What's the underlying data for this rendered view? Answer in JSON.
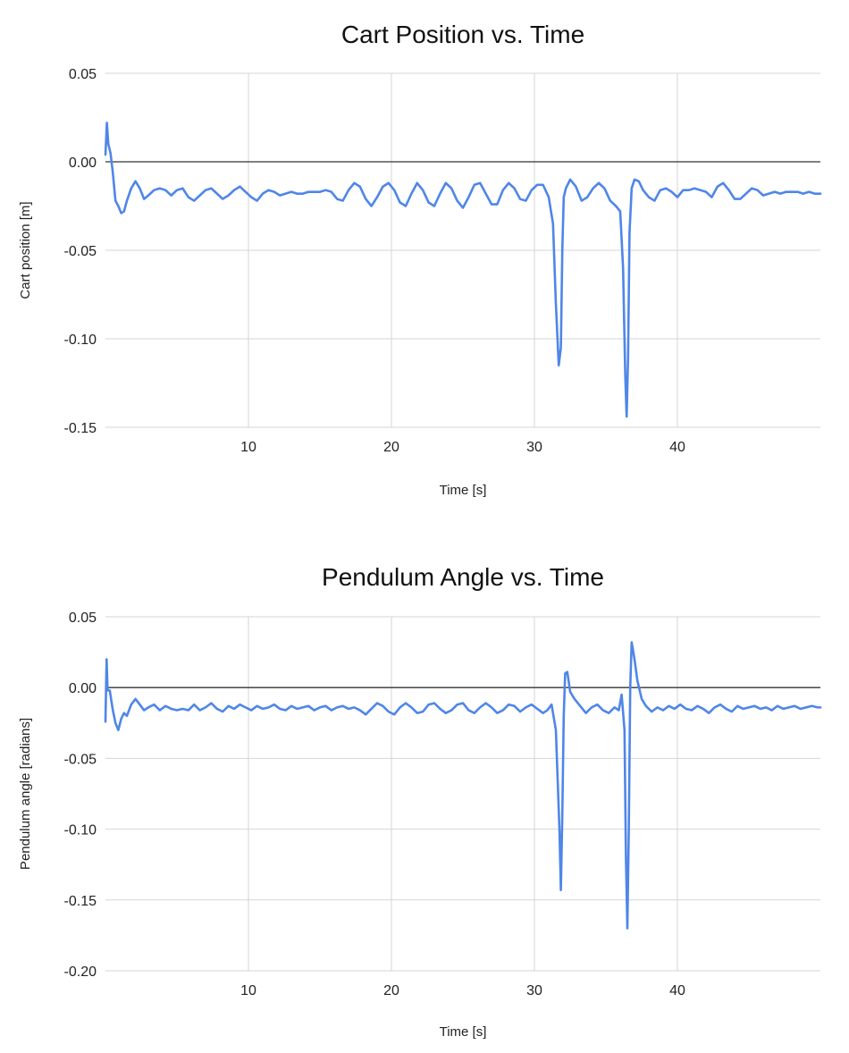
{
  "chart_data": [
    {
      "type": "line",
      "title": "Cart Position vs. Time",
      "xlabel": "Time [s]",
      "ylabel": "Cart position [m]",
      "xlim": [
        0,
        50
      ],
      "ylim": [
        -0.15,
        0.05
      ],
      "xticks": [
        10,
        20,
        30,
        40
      ],
      "xtick_labels": [
        "10",
        "20",
        "30",
        "40"
      ],
      "yticks": [
        0.05,
        0.0,
        -0.05,
        -0.1,
        -0.15
      ],
      "ytick_labels": [
        "0.05",
        "0.00",
        "-0.05",
        "-0.10",
        "-0.15"
      ],
      "grid": true,
      "legend": "none",
      "series": [
        {
          "color": "#4f86e8",
          "x": [
            0.0,
            0.1,
            0.2,
            0.35,
            0.5,
            0.7,
            0.9,
            1.1,
            1.3,
            1.5,
            1.8,
            2.1,
            2.4,
            2.7,
            3.0,
            3.4,
            3.8,
            4.2,
            4.6,
            5.0,
            5.4,
            5.8,
            6.2,
            6.6,
            7.0,
            7.4,
            7.8,
            8.2,
            8.6,
            9.0,
            9.4,
            9.8,
            10.2,
            10.6,
            11.0,
            11.4,
            11.8,
            12.2,
            12.6,
            13.0,
            13.4,
            13.8,
            14.2,
            14.6,
            15.0,
            15.4,
            15.8,
            16.2,
            16.6,
            17.0,
            17.4,
            17.8,
            18.2,
            18.6,
            19.0,
            19.4,
            19.8,
            20.2,
            20.6,
            21.0,
            21.4,
            21.8,
            22.2,
            22.6,
            23.0,
            23.4,
            23.8,
            24.2,
            24.6,
            25.0,
            25.4,
            25.8,
            26.2,
            26.6,
            27.0,
            27.4,
            27.8,
            28.2,
            28.6,
            29.0,
            29.4,
            29.8,
            30.2,
            30.6,
            31.0,
            31.3,
            31.5,
            31.7,
            31.85,
            31.95,
            32.05,
            32.2,
            32.5,
            32.9,
            33.3,
            33.7,
            34.1,
            34.5,
            34.9,
            35.3,
            35.7,
            36.0,
            36.2,
            36.35,
            36.45,
            36.55,
            36.65,
            36.8,
            37.0,
            37.3,
            37.6,
            38.0,
            38.4,
            38.8,
            39.2,
            39.6,
            40.0,
            40.4,
            40.8,
            41.2,
            41.6,
            42.0,
            42.4,
            42.8,
            43.2,
            43.6,
            44.0,
            44.4,
            44.8,
            45.2,
            45.6,
            46.0,
            46.4,
            46.8,
            47.2,
            47.6,
            48.0,
            48.4,
            48.8,
            49.2,
            49.6,
            50.0
          ],
          "y": [
            0.004,
            0.022,
            0.01,
            0.005,
            -0.005,
            -0.022,
            -0.025,
            -0.029,
            -0.028,
            -0.022,
            -0.015,
            -0.011,
            -0.015,
            -0.021,
            -0.019,
            -0.016,
            -0.015,
            -0.016,
            -0.019,
            -0.016,
            -0.015,
            -0.02,
            -0.022,
            -0.019,
            -0.016,
            -0.015,
            -0.018,
            -0.021,
            -0.019,
            -0.016,
            -0.014,
            -0.017,
            -0.02,
            -0.022,
            -0.018,
            -0.016,
            -0.017,
            -0.019,
            -0.018,
            -0.017,
            -0.018,
            -0.018,
            -0.017,
            -0.017,
            -0.017,
            -0.016,
            -0.017,
            -0.021,
            -0.022,
            -0.016,
            -0.012,
            -0.014,
            -0.021,
            -0.025,
            -0.02,
            -0.014,
            -0.012,
            -0.016,
            -0.023,
            -0.025,
            -0.018,
            -0.012,
            -0.016,
            -0.023,
            -0.025,
            -0.018,
            -0.012,
            -0.015,
            -0.022,
            -0.026,
            -0.02,
            -0.013,
            -0.012,
            -0.018,
            -0.024,
            -0.024,
            -0.016,
            -0.012,
            -0.015,
            -0.021,
            -0.022,
            -0.016,
            -0.013,
            -0.013,
            -0.02,
            -0.035,
            -0.08,
            -0.115,
            -0.105,
            -0.05,
            -0.02,
            -0.015,
            -0.01,
            -0.014,
            -0.022,
            -0.02,
            -0.015,
            -0.012,
            -0.015,
            -0.022,
            -0.025,
            -0.028,
            -0.06,
            -0.12,
            -0.144,
            -0.11,
            -0.04,
            -0.015,
            -0.01,
            -0.011,
            -0.016,
            -0.02,
            -0.022,
            -0.016,
            -0.015,
            -0.017,
            -0.02,
            -0.016,
            -0.016,
            -0.015,
            -0.016,
            -0.017,
            -0.02,
            -0.014,
            -0.012,
            -0.016,
            -0.021,
            -0.021,
            -0.018,
            -0.015,
            -0.016,
            -0.019,
            -0.018,
            -0.017,
            -0.018,
            -0.017,
            -0.017,
            -0.017,
            -0.018,
            -0.017,
            -0.018,
            -0.018
          ]
        }
      ]
    },
    {
      "type": "line",
      "title": "Pendulum Angle vs. Time",
      "xlabel": "Time [s]",
      "ylabel": "Pendulum angle [radians]",
      "xlim": [
        0,
        50
      ],
      "ylim": [
        -0.2,
        0.05
      ],
      "xticks": [
        10,
        20,
        30,
        40
      ],
      "xtick_labels": [
        "10",
        "20",
        "30",
        "40"
      ],
      "yticks": [
        0.05,
        0.0,
        -0.05,
        -0.1,
        -0.15,
        -0.2
      ],
      "ytick_labels": [
        "0.05",
        "0.00",
        "-0.05",
        "-0.10",
        "-0.15",
        "-0.20"
      ],
      "grid": true,
      "legend": "none",
      "series": [
        {
          "color": "#4f86e8",
          "x": [
            0.0,
            0.08,
            0.15,
            0.3,
            0.5,
            0.7,
            0.9,
            1.1,
            1.3,
            1.5,
            1.8,
            2.1,
            2.4,
            2.7,
            3.0,
            3.4,
            3.8,
            4.2,
            4.6,
            5.0,
            5.4,
            5.8,
            6.2,
            6.6,
            7.0,
            7.4,
            7.8,
            8.2,
            8.6,
            9.0,
            9.4,
            9.8,
            10.2,
            10.6,
            11.0,
            11.4,
            11.8,
            12.2,
            12.6,
            13.0,
            13.4,
            13.8,
            14.2,
            14.6,
            15.0,
            15.4,
            15.8,
            16.2,
            16.6,
            17.0,
            17.4,
            17.8,
            18.2,
            18.6,
            19.0,
            19.4,
            19.8,
            20.2,
            20.6,
            21.0,
            21.4,
            21.8,
            22.2,
            22.6,
            23.0,
            23.4,
            23.8,
            24.2,
            24.6,
            25.0,
            25.4,
            25.8,
            26.2,
            26.6,
            27.0,
            27.4,
            27.8,
            28.2,
            28.6,
            29.0,
            29.4,
            29.8,
            30.2,
            30.6,
            30.9,
            31.2,
            31.5,
            31.75,
            31.85,
            31.95,
            32.05,
            32.15,
            32.3,
            32.5,
            32.8,
            33.2,
            33.6,
            34.0,
            34.4,
            34.8,
            35.2,
            35.6,
            35.9,
            36.1,
            36.3,
            36.4,
            36.5,
            36.6,
            36.7,
            36.8,
            37.0,
            37.2,
            37.5,
            37.8,
            38.2,
            38.6,
            39.0,
            39.4,
            39.8,
            40.2,
            40.6,
            41.0,
            41.4,
            41.8,
            42.2,
            42.6,
            43.0,
            43.4,
            43.8,
            44.2,
            44.6,
            45.0,
            45.4,
            45.8,
            46.2,
            46.6,
            47.0,
            47.4,
            47.8,
            48.2,
            48.6,
            49.0,
            49.4,
            49.8,
            50.0
          ],
          "y": [
            -0.024,
            0.02,
            -0.002,
            -0.002,
            -0.015,
            -0.025,
            -0.03,
            -0.022,
            -0.018,
            -0.02,
            -0.012,
            -0.008,
            -0.012,
            -0.016,
            -0.014,
            -0.012,
            -0.016,
            -0.013,
            -0.015,
            -0.016,
            -0.015,
            -0.016,
            -0.012,
            -0.016,
            -0.014,
            -0.011,
            -0.015,
            -0.017,
            -0.013,
            -0.015,
            -0.012,
            -0.014,
            -0.016,
            -0.013,
            -0.015,
            -0.014,
            -0.012,
            -0.015,
            -0.016,
            -0.013,
            -0.015,
            -0.014,
            -0.013,
            -0.016,
            -0.014,
            -0.013,
            -0.016,
            -0.014,
            -0.013,
            -0.015,
            -0.014,
            -0.016,
            -0.019,
            -0.015,
            -0.011,
            -0.013,
            -0.017,
            -0.019,
            -0.014,
            -0.011,
            -0.014,
            -0.018,
            -0.017,
            -0.012,
            -0.011,
            -0.015,
            -0.018,
            -0.016,
            -0.012,
            -0.011,
            -0.016,
            -0.018,
            -0.014,
            -0.011,
            -0.014,
            -0.018,
            -0.016,
            -0.012,
            -0.013,
            -0.017,
            -0.014,
            -0.012,
            -0.015,
            -0.018,
            -0.016,
            -0.012,
            -0.03,
            -0.1,
            -0.143,
            -0.09,
            -0.02,
            0.01,
            0.011,
            -0.003,
            -0.008,
            -0.013,
            -0.018,
            -0.014,
            -0.012,
            -0.016,
            -0.018,
            -0.014,
            -0.016,
            -0.005,
            -0.03,
            -0.12,
            -0.17,
            -0.1,
            0.0,
            0.032,
            0.02,
            0.005,
            -0.008,
            -0.013,
            -0.017,
            -0.014,
            -0.016,
            -0.013,
            -0.015,
            -0.012,
            -0.015,
            -0.016,
            -0.013,
            -0.015,
            -0.018,
            -0.014,
            -0.012,
            -0.015,
            -0.017,
            -0.013,
            -0.015,
            -0.014,
            -0.013,
            -0.015,
            -0.014,
            -0.016,
            -0.013,
            -0.015,
            -0.014,
            -0.013,
            -0.015,
            -0.014,
            -0.013,
            -0.014,
            -0.014
          ]
        }
      ]
    }
  ]
}
